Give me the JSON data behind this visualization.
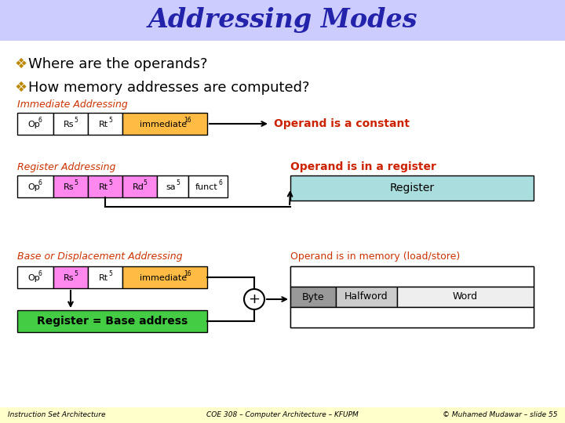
{
  "title": "Addressing Modes",
  "title_color": "#2222aa",
  "title_bg": "#ccccff",
  "bg_color": "#ffffff",
  "bullet1": "Where are the operands?",
  "bullet2": "How memory addresses are computed?",
  "footer_bg": "#ffffcc",
  "footer_left": "Instruction Set Architecture",
  "footer_center": "COE 308 – Computer Architecture – KFUPM",
  "footer_right": "© Muhamed Mudawar – slide 55",
  "imm_label": "Immediate Addressing",
  "section_label_color": "#cc3300",
  "reg_label": "Register Addressing",
  "base_label": "Base or Displacement Addressing",
  "white": "#ffffff",
  "pink": "#ff88ee",
  "orange": "#ffbb44",
  "teal": "#aadddd",
  "green": "#44cc44",
  "gray_dark": "#999999",
  "gray_mid": "#cccccc",
  "gray_light": "#eeeeee",
  "red_text": "#cc2200",
  "black": "#000000",
  "operand_const": "Operand is a constant",
  "operand_reg": "Operand is in a register",
  "operand_mem": "Operand is in memory (load/store)",
  "reg_box_text": "Register",
  "green_box_text": "Register = Base address",
  "byte_text": "Byte",
  "half_text": "Halfword",
  "word_text": "Word"
}
